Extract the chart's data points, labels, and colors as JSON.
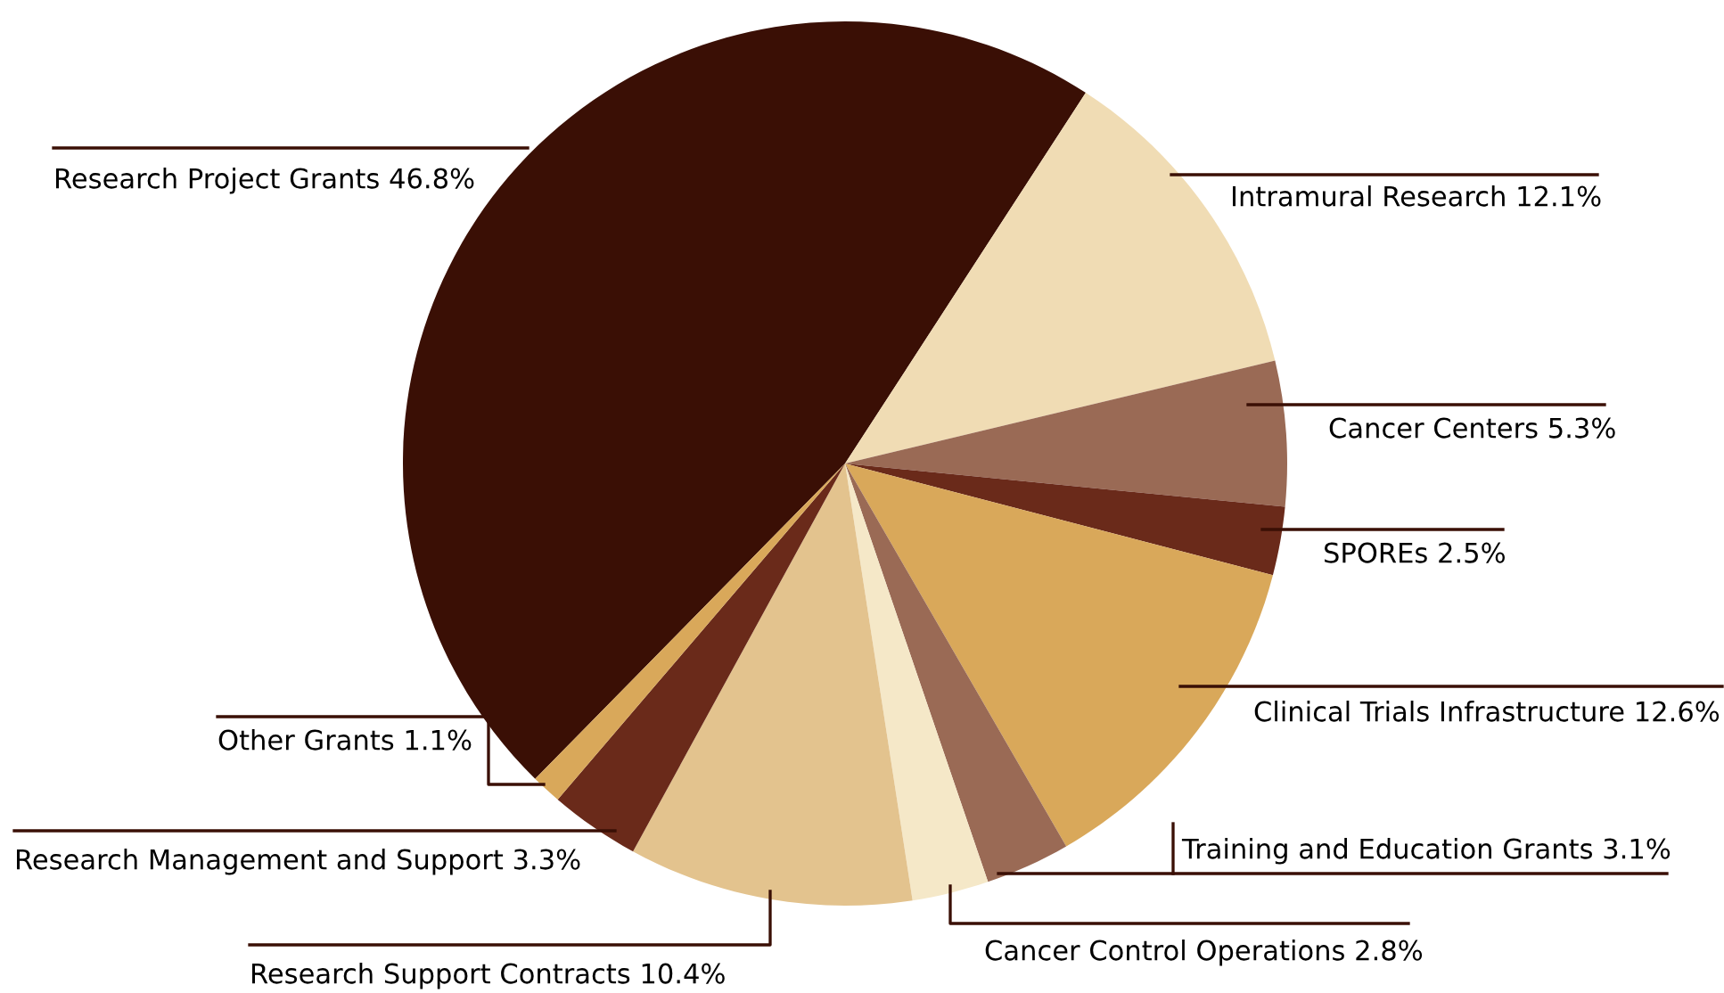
{
  "chart_data": {
    "type": "pie",
    "categories": [
      "Research Project Grants",
      "Intramural Research",
      "Cancer Centers",
      "SPOREs",
      "Clinical Trials Infrastructure",
      "Training and Education Grants",
      "Cancer Control Operations",
      "Research Support Contracts",
      "Research Management and Support",
      "Other Grants"
    ],
    "values": [
      46.8,
      12.1,
      5.3,
      2.5,
      12.6,
      3.1,
      2.8,
      10.4,
      3.3,
      1.1
    ],
    "value_labels": [
      "46.8%",
      "12.1%",
      "5.3%",
      "2.5%",
      "12.6%",
      "3.1%",
      "2.8%",
      "10.4%",
      "3.3%",
      "1.1%"
    ],
    "colors": [
      "#3a0f05",
      "#f0dcb4",
      "#9a6a55",
      "#6a2a1a",
      "#d9a85a",
      "#9a6a55",
      "#f5e8c8",
      "#e3c38e",
      "#6a2a1a",
      "#d9a85a"
    ]
  }
}
